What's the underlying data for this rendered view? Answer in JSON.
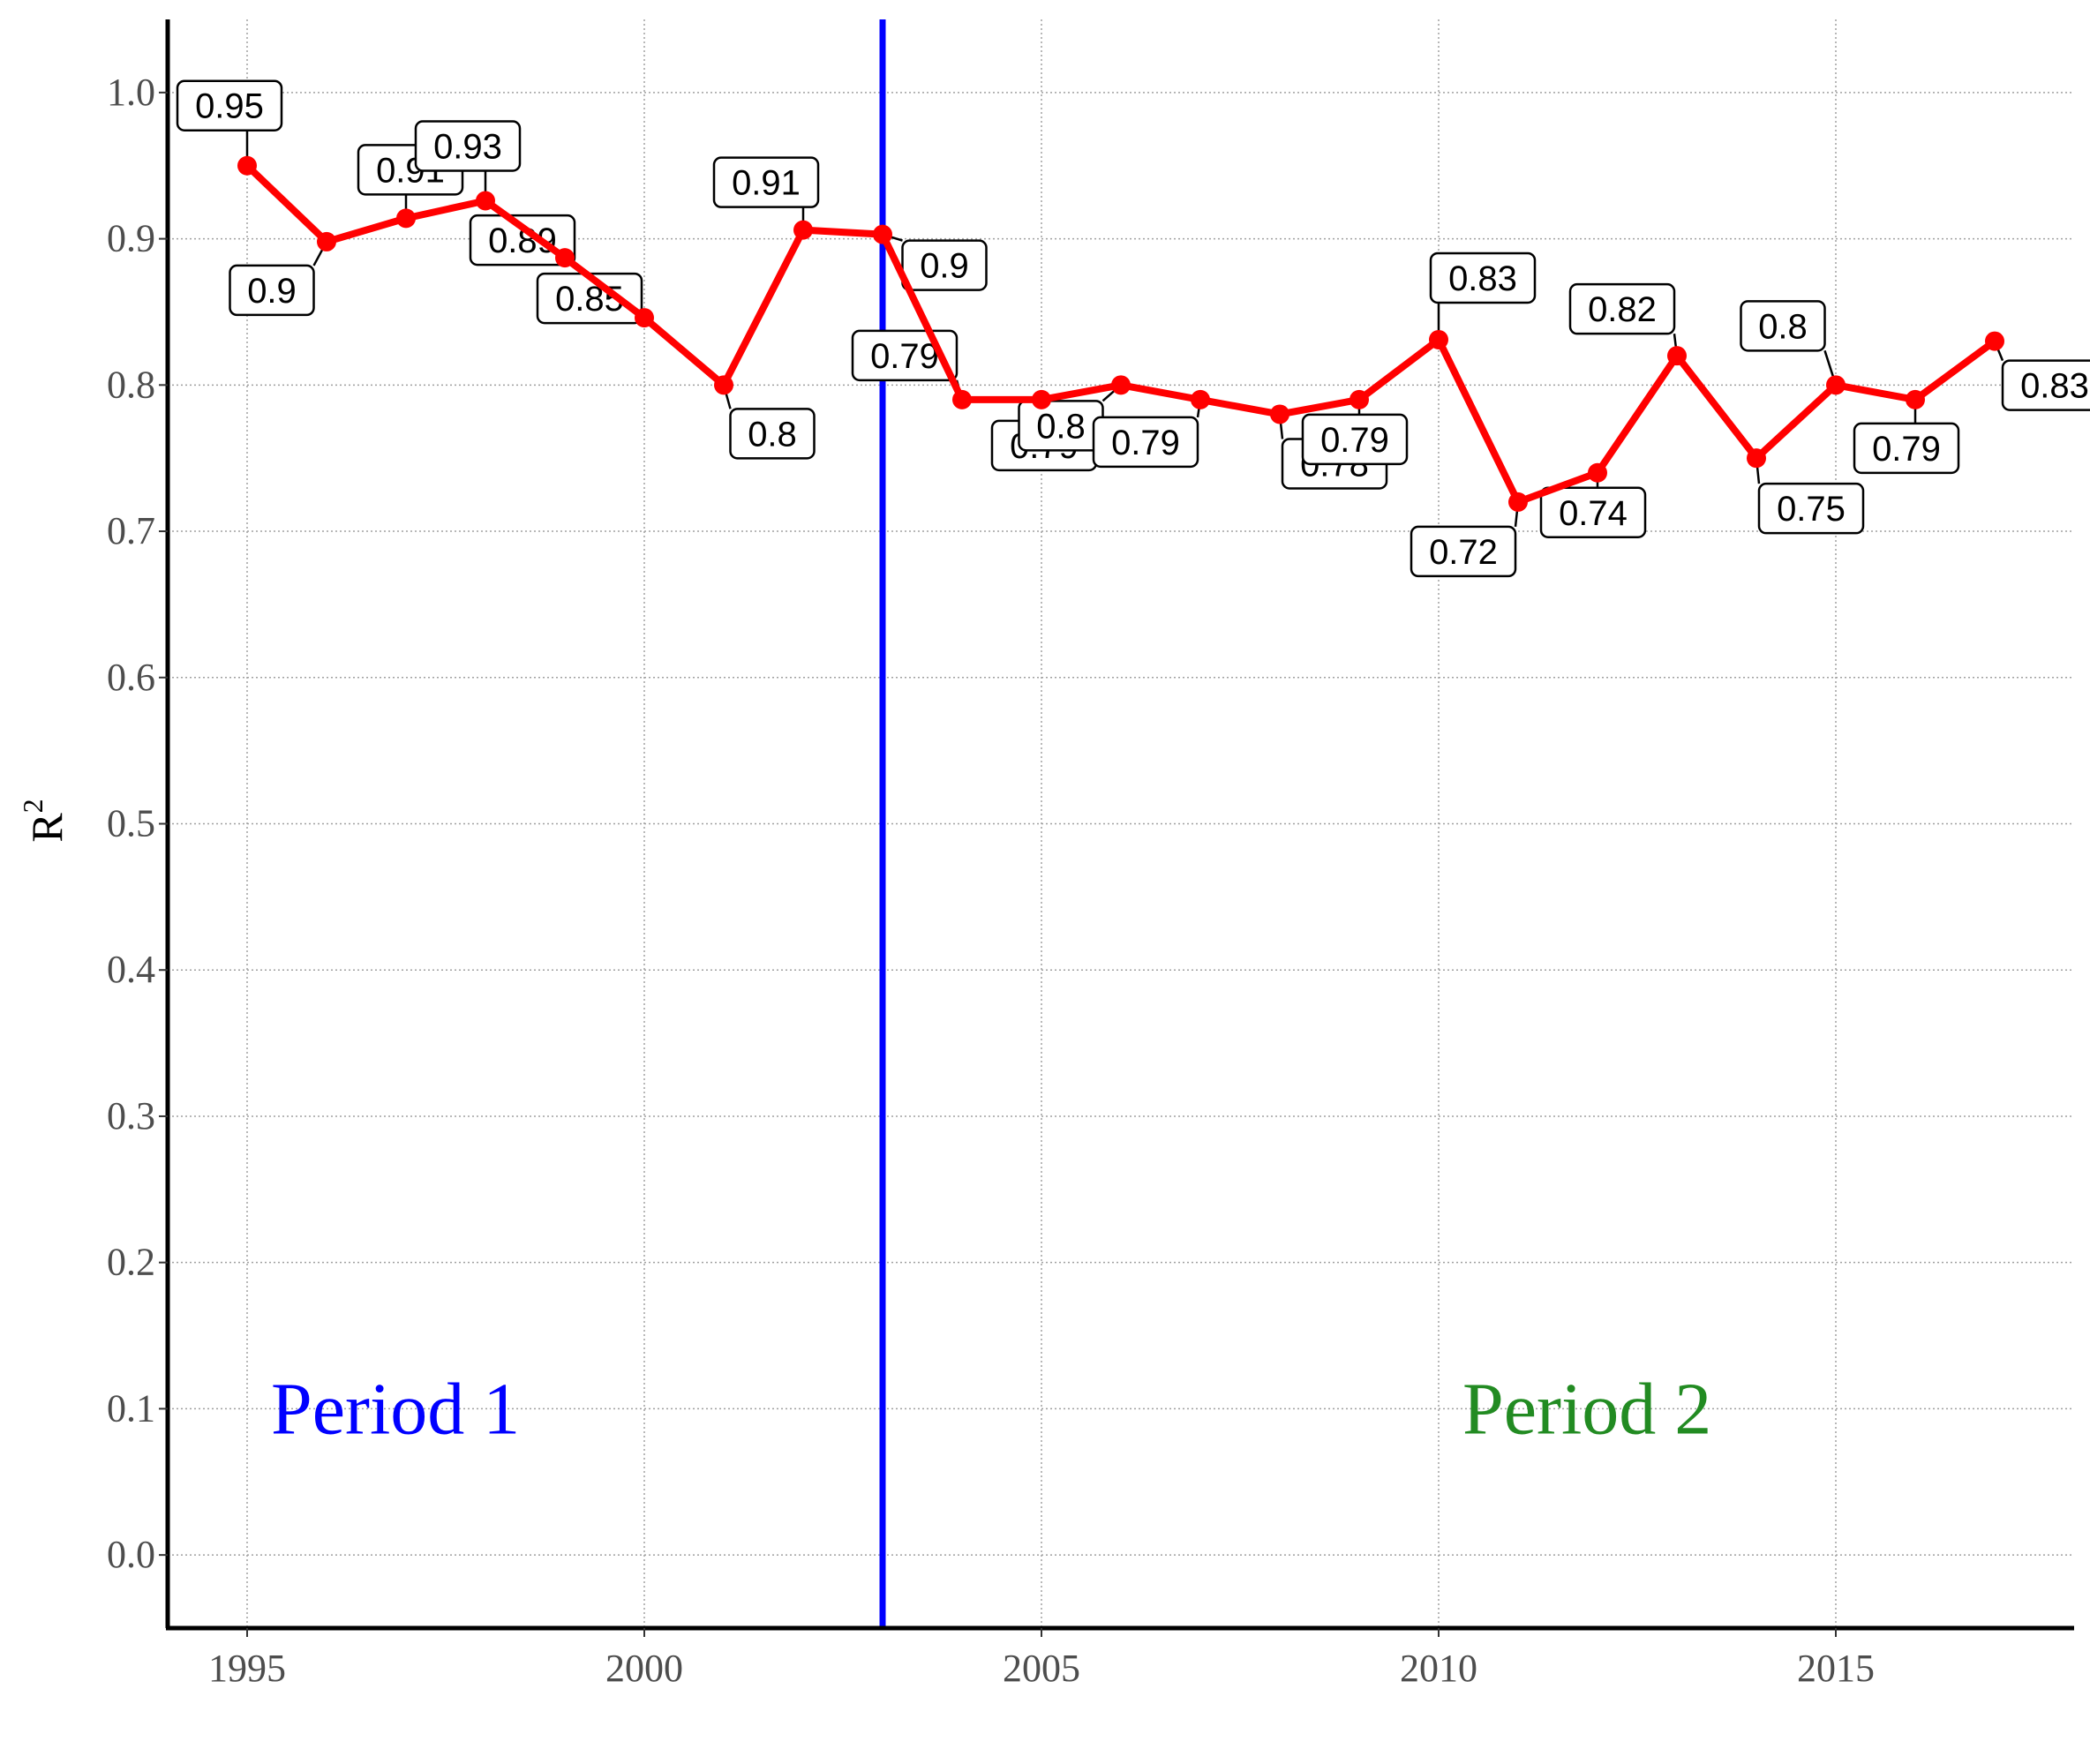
{
  "chart_data": {
    "type": "line",
    "xlabel": "",
    "ylabel": "R",
    "ylabel_superscript": "2",
    "xlim": [
      1994,
      2018
    ],
    "ylim": [
      -0.05,
      1.05
    ],
    "x_ticks": [
      "1995",
      "2000",
      "2005",
      "2010",
      "2015"
    ],
    "y_ticks": [
      "0.0",
      "0.1",
      "0.2",
      "0.3",
      "0.4",
      "0.5",
      "0.6",
      "0.7",
      "0.8",
      "0.9",
      "1.0"
    ],
    "grid": true,
    "line_color": "#ff0000",
    "series": [
      {
        "x": [
          1995,
          1996,
          1997,
          1998,
          1999,
          2000,
          2001,
          2002,
          2003,
          2004,
          2005,
          2006,
          2007,
          2008,
          2009,
          2010,
          2011,
          2012,
          2013,
          2014,
          2015,
          2016,
          2017
        ],
        "values": [
          0.95,
          0.898,
          0.914,
          0.926,
          0.887,
          0.846,
          0.8,
          0.906,
          0.903,
          0.79,
          0.79,
          0.8,
          0.79,
          0.78,
          0.79,
          0.831,
          0.72,
          0.74,
          0.82,
          0.75,
          0.8,
          0.79,
          0.83
        ]
      }
    ],
    "data_labels": [
      "0.95",
      "0.9",
      "0.91",
      "0.93",
      "0.89",
      "0.85",
      "0.8",
      "0.91",
      "0.9",
      "0.79",
      "0.79",
      "0.8",
      "0.79",
      "0.78",
      "0.79",
      "0.83",
      "0.72",
      "0.74",
      "0.82",
      "0.75",
      "0.8",
      "0.79",
      "0.83"
    ],
    "vline": {
      "x": 2003,
      "color": "#0000ff"
    },
    "annotations": [
      {
        "text": "Period 1",
        "x": 1995.3,
        "y": 0.1,
        "color": "#0000ff"
      },
      {
        "text": "Period 2",
        "x": 2010.3,
        "y": 0.1,
        "color": "#228b22"
      }
    ]
  }
}
